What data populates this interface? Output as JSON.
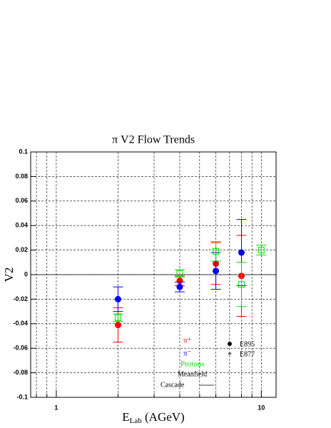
{
  "chart_data": {
    "type": "errorbar",
    "title": "π V2 Flow Trends",
    "x_label": [
      "E",
      "Lab",
      " (AGeV)"
    ],
    "y_label": "V2",
    "xscale": "log",
    "xlim": [
      0.75,
      11.8
    ],
    "xticks": [
      1,
      10
    ],
    "xminorticks": [
      0.8,
      0.9,
      2,
      3,
      4,
      5,
      6,
      7,
      8,
      9
    ],
    "ylim": [
      -0.1,
      0.1
    ],
    "yticks": [
      -0.1,
      -0.08,
      -0.06,
      -0.04,
      -0.02,
      0,
      0.02,
      0.04,
      0.06,
      0.08,
      0.1
    ],
    "grid": true,
    "series": [
      {
        "name": "π⁺",
        "color": "#ff0000",
        "marker": "filled-circle",
        "x": [
          2,
          4,
          6,
          8
        ],
        "values": [
          -0.041,
          -0.005,
          0.009,
          -0.001
        ],
        "errors": [
          0.014,
          0.004,
          0.017,
          0.033
        ]
      },
      {
        "name": "π⁻",
        "color": "#0000ff",
        "marker": "filled-circle",
        "x": [
          2,
          4,
          6,
          8
        ],
        "values": [
          -0.02,
          -0.01,
          0.003,
          0.018
        ],
        "errors": [
          0.01,
          0.004,
          0.015,
          0.027
        ]
      },
      {
        "name": "Protons",
        "color": "#00dd00",
        "marker": "open-square",
        "x": [
          2,
          4,
          6,
          8,
          10
        ],
        "values": [
          -0.035,
          0.001,
          0.019,
          -0.008,
          0.02
        ],
        "errors": [
          0.003,
          0.003,
          0.008,
          0.018,
          0.004
        ]
      }
    ],
    "annotations": [
      "E895",
      "E877",
      "Meanfield",
      "Cascade"
    ]
  }
}
